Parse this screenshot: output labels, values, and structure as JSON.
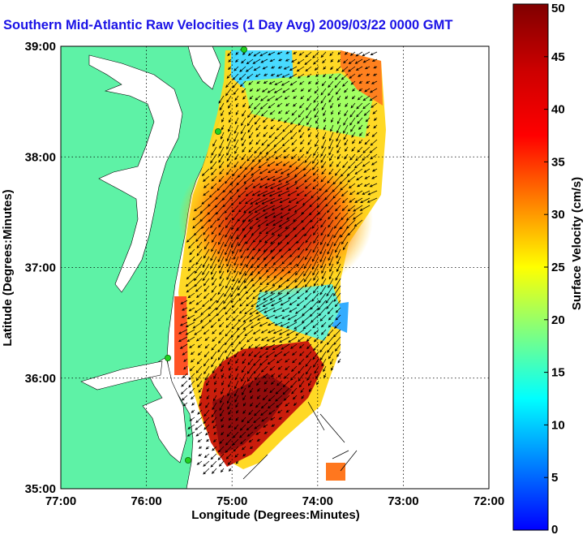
{
  "title": "Southern Mid-Atlantic Raw Velocities (1 Day Avg) 2009/03/22 0000 GMT",
  "map": {
    "xlabel": "Longitude (Degrees:Minutes)",
    "ylabel": "Latitude (Degrees:Minutes)",
    "lon_range": [
      -77,
      -72
    ],
    "lat_range": [
      35,
      39
    ],
    "lon_ticks": [
      "77:00",
      "76:00",
      "75:00",
      "74:00",
      "73:00",
      "72:00"
    ],
    "lat_ticks": [
      "39:00",
      "38:00",
      "37:00",
      "36:00",
      "35:00"
    ],
    "grid": true,
    "land_color": "#5ef2a6",
    "water_color": "#ffffff",
    "site_color": "#22d022"
  },
  "colorbar": {
    "label": "Surface Velocity (cm/s)",
    "range": [
      0,
      50
    ],
    "ticks": [
      "50",
      "45",
      "40",
      "35",
      "30",
      "25",
      "20",
      "15",
      "10",
      "5",
      "0"
    ]
  }
}
